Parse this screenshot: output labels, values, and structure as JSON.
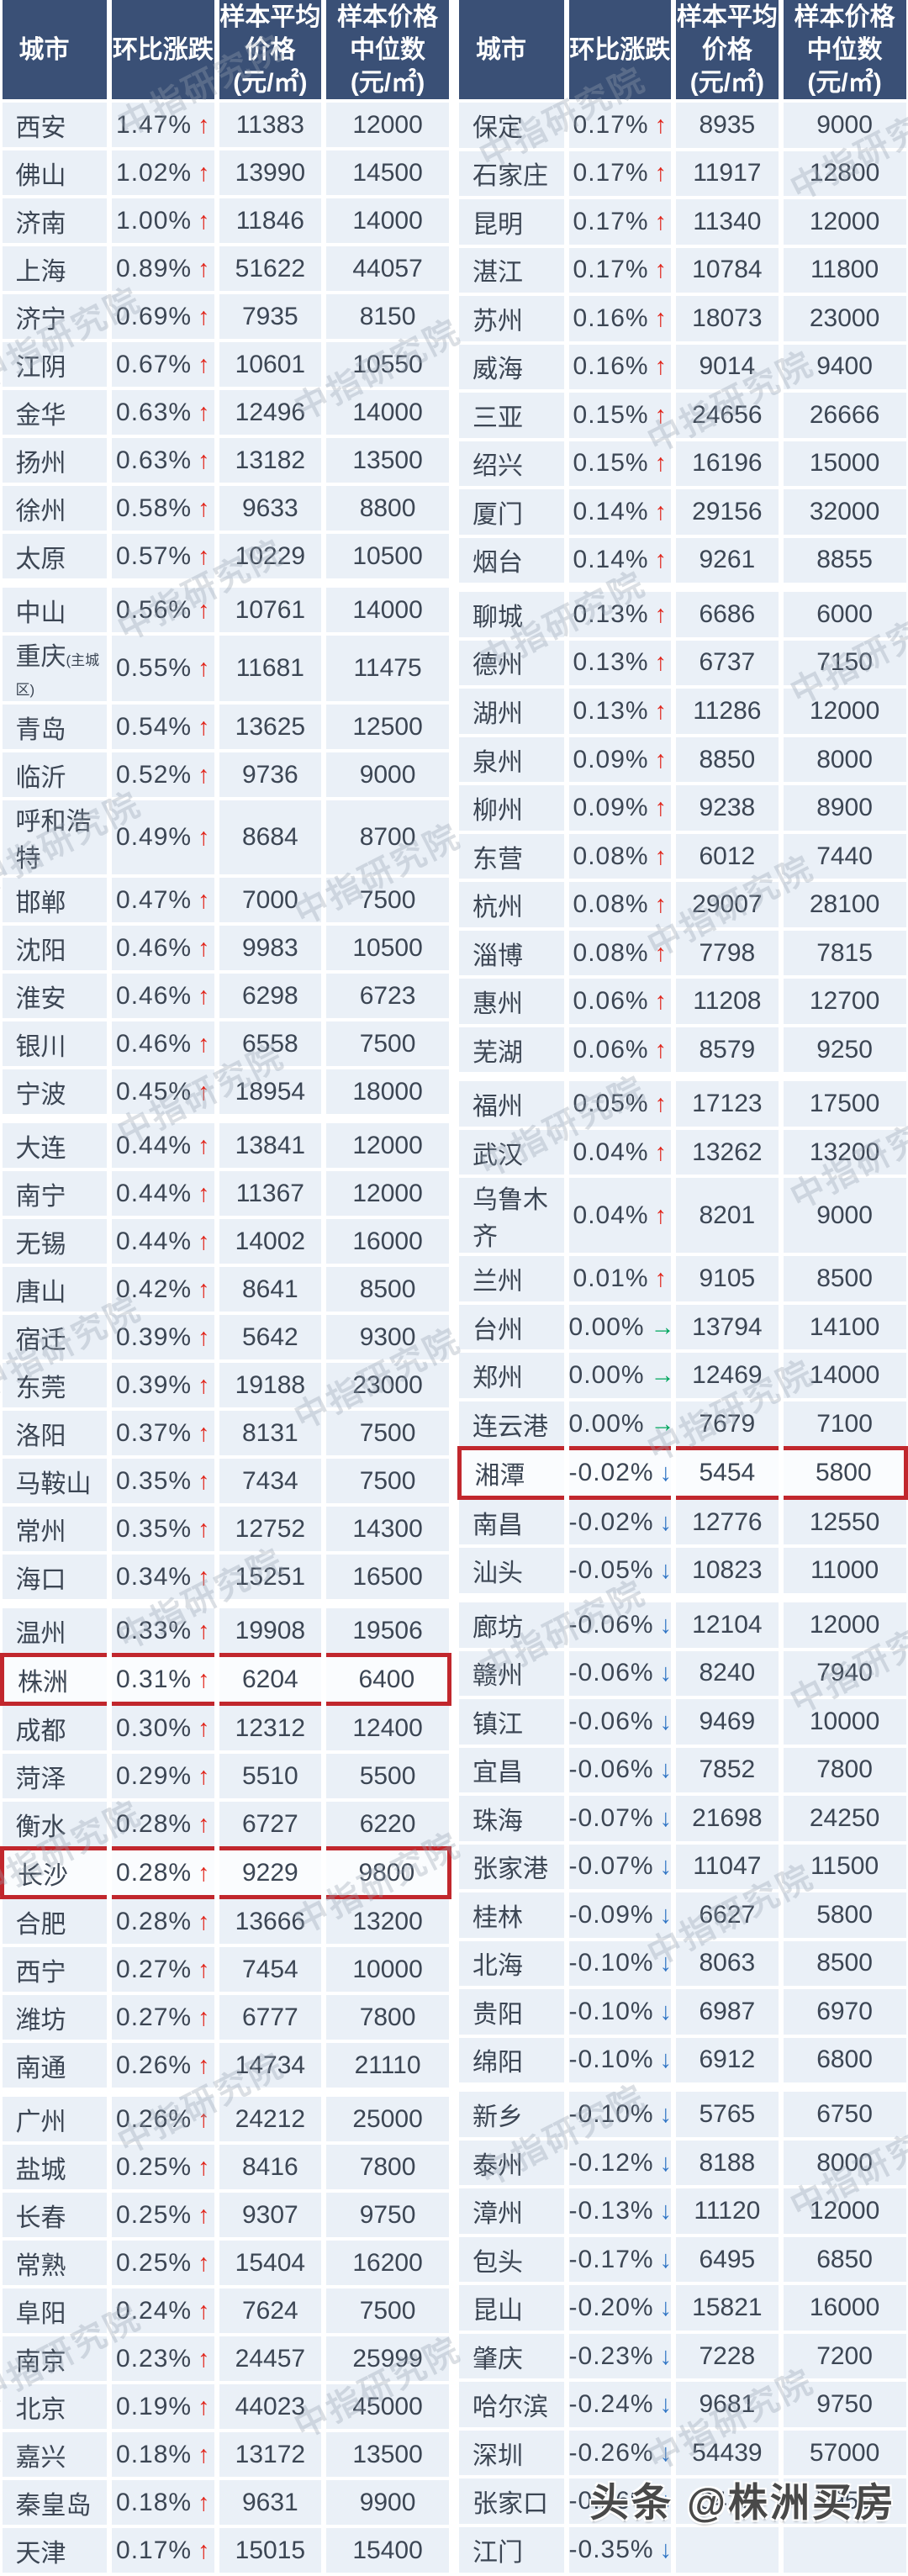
{
  "header": {
    "city": "城市",
    "change": "环比涨跌",
    "avg1": "样本平均",
    "avg2": "价格",
    "median1": "样本价格",
    "median2": "中位数",
    "unit": "(元/㎡)"
  },
  "arrows": {
    "up": "↑",
    "down": "↓",
    "flat": "→"
  },
  "colors": {
    "header_bg": "#3a5076",
    "row_bg": "#eaf0f7",
    "highlight_row_bg": "#fafcfe",
    "up_arrow": "#e1251b",
    "down_arrow": "#2f74c4",
    "flat_arrow": "#00a65e",
    "highlight_border": "#c1272d"
  },
  "watermark": {
    "text": "中指研究院"
  },
  "footer_watermark": {
    "text": "头条 @株洲买房"
  },
  "left_rows": [
    {
      "city": "西安",
      "change": "1.47%",
      "dir": "up",
      "avg": "11383",
      "median": "12000"
    },
    {
      "city": "佛山",
      "change": "1.02%",
      "dir": "up",
      "avg": "13990",
      "median": "14500"
    },
    {
      "city": "济南",
      "change": "1.00%",
      "dir": "up",
      "avg": "11846",
      "median": "14000"
    },
    {
      "city": "上海",
      "change": "0.89%",
      "dir": "up",
      "avg": "51622",
      "median": "44057"
    },
    {
      "city": "济宁",
      "change": "0.69%",
      "dir": "up",
      "avg": "7935",
      "median": "8150"
    },
    {
      "city": "江阴",
      "change": "0.67%",
      "dir": "up",
      "avg": "10601",
      "median": "10550"
    },
    {
      "city": "金华",
      "change": "0.63%",
      "dir": "up",
      "avg": "12496",
      "median": "14000"
    },
    {
      "city": "扬州",
      "change": "0.63%",
      "dir": "up",
      "avg": "13182",
      "median": "13500"
    },
    {
      "city": "徐州",
      "change": "0.58%",
      "dir": "up",
      "avg": "9633",
      "median": "8800"
    },
    {
      "city": "太原",
      "change": "0.57%",
      "dir": "up",
      "avg": "10229",
      "median": "10500"
    },
    {
      "city": "中山",
      "change": "0.56%",
      "dir": "up",
      "avg": "10761",
      "median": "14000"
    },
    {
      "city": "重庆",
      "note": "(主城区)",
      "change": "0.55%",
      "dir": "up",
      "avg": "11681",
      "median": "11475"
    },
    {
      "city": "青岛",
      "change": "0.54%",
      "dir": "up",
      "avg": "13625",
      "median": "12500"
    },
    {
      "city": "临沂",
      "change": "0.52%",
      "dir": "up",
      "avg": "9736",
      "median": "9000"
    },
    {
      "city": "呼和浩特",
      "change": "0.49%",
      "dir": "up",
      "avg": "8684",
      "median": "8700"
    },
    {
      "city": "邯郸",
      "change": "0.47%",
      "dir": "up",
      "avg": "7000",
      "median": "7500"
    },
    {
      "city": "沈阳",
      "change": "0.46%",
      "dir": "up",
      "avg": "9983",
      "median": "10500"
    },
    {
      "city": "淮安",
      "change": "0.46%",
      "dir": "up",
      "avg": "6298",
      "median": "6723"
    },
    {
      "city": "银川",
      "change": "0.46%",
      "dir": "up",
      "avg": "6558",
      "median": "7500"
    },
    {
      "city": "宁波",
      "change": "0.45%",
      "dir": "up",
      "avg": "18954",
      "median": "18000"
    },
    {
      "city": "大连",
      "change": "0.44%",
      "dir": "up",
      "avg": "13841",
      "median": "12000"
    },
    {
      "city": "南宁",
      "change": "0.44%",
      "dir": "up",
      "avg": "11367",
      "median": "12000"
    },
    {
      "city": "无锡",
      "change": "0.44%",
      "dir": "up",
      "avg": "14002",
      "median": "16000"
    },
    {
      "city": "唐山",
      "change": "0.42%",
      "dir": "up",
      "avg": "8641",
      "median": "8500"
    },
    {
      "city": "宿迁",
      "change": "0.39%",
      "dir": "up",
      "avg": "5642",
      "median": "9300"
    },
    {
      "city": "东莞",
      "change": "0.39%",
      "dir": "up",
      "avg": "19188",
      "median": "23000"
    },
    {
      "city": "洛阳",
      "change": "0.37%",
      "dir": "up",
      "avg": "8131",
      "median": "7500"
    },
    {
      "city": "马鞍山",
      "change": "0.35%",
      "dir": "up",
      "avg": "7434",
      "median": "7500"
    },
    {
      "city": "常州",
      "change": "0.35%",
      "dir": "up",
      "avg": "12752",
      "median": "14300"
    },
    {
      "city": "海口",
      "change": "0.34%",
      "dir": "up",
      "avg": "15251",
      "median": "16500"
    },
    {
      "city": "温州",
      "change": "0.33%",
      "dir": "up",
      "avg": "19908",
      "median": "19506"
    },
    {
      "city": "株洲",
      "change": "0.31%",
      "dir": "up",
      "avg": "6204",
      "median": "6400",
      "highlight": true
    },
    {
      "city": "成都",
      "change": "0.30%",
      "dir": "up",
      "avg": "12312",
      "median": "12400"
    },
    {
      "city": "菏泽",
      "change": "0.29%",
      "dir": "up",
      "avg": "5510",
      "median": "5500"
    },
    {
      "city": "衡水",
      "change": "0.28%",
      "dir": "up",
      "avg": "6727",
      "median": "6220"
    },
    {
      "city": "长沙",
      "change": "0.28%",
      "dir": "up",
      "avg": "9229",
      "median": "9800",
      "highlight": true
    },
    {
      "city": "合肥",
      "change": "0.28%",
      "dir": "up",
      "avg": "13666",
      "median": "13200"
    },
    {
      "city": "西宁",
      "change": "0.27%",
      "dir": "up",
      "avg": "7454",
      "median": "10000"
    },
    {
      "city": "潍坊",
      "change": "0.27%",
      "dir": "up",
      "avg": "6777",
      "median": "7800"
    },
    {
      "city": "南通",
      "change": "0.26%",
      "dir": "up",
      "avg": "14734",
      "median": "21110"
    },
    {
      "city": "广州",
      "change": "0.26%",
      "dir": "up",
      "avg": "24212",
      "median": "25000"
    },
    {
      "city": "盐城",
      "change": "0.25%",
      "dir": "up",
      "avg": "8416",
      "median": "7800"
    },
    {
      "city": "长春",
      "change": "0.25%",
      "dir": "up",
      "avg": "9307",
      "median": "9750"
    },
    {
      "city": "常熟",
      "change": "0.25%",
      "dir": "up",
      "avg": "15404",
      "median": "16200"
    },
    {
      "city": "阜阳",
      "change": "0.24%",
      "dir": "up",
      "avg": "7624",
      "median": "7500"
    },
    {
      "city": "南京",
      "change": "0.23%",
      "dir": "up",
      "avg": "24457",
      "median": "25999"
    },
    {
      "city": "北京",
      "change": "0.19%",
      "dir": "up",
      "avg": "44023",
      "median": "45000"
    },
    {
      "city": "嘉兴",
      "change": "0.18%",
      "dir": "up",
      "avg": "13172",
      "median": "13500"
    },
    {
      "city": "秦皇岛",
      "change": "0.18%",
      "dir": "up",
      "avg": "9631",
      "median": "9900"
    },
    {
      "city": "天津",
      "change": "0.17%",
      "dir": "up",
      "avg": "15015",
      "median": "15400"
    }
  ],
  "right_rows": [
    {
      "city": "保定",
      "change": "0.17%",
      "dir": "up",
      "avg": "8935",
      "median": "9000"
    },
    {
      "city": "石家庄",
      "change": "0.17%",
      "dir": "up",
      "avg": "11917",
      "median": "12800"
    },
    {
      "city": "昆明",
      "change": "0.17%",
      "dir": "up",
      "avg": "11340",
      "median": "12000"
    },
    {
      "city": "湛江",
      "change": "0.17%",
      "dir": "up",
      "avg": "10784",
      "median": "11800"
    },
    {
      "city": "苏州",
      "change": "0.16%",
      "dir": "up",
      "avg": "18073",
      "median": "23000"
    },
    {
      "city": "威海",
      "change": "0.16%",
      "dir": "up",
      "avg": "9014",
      "median": "9400"
    },
    {
      "city": "三亚",
      "change": "0.15%",
      "dir": "up",
      "avg": "24656",
      "median": "26666"
    },
    {
      "city": "绍兴",
      "change": "0.15%",
      "dir": "up",
      "avg": "16196",
      "median": "15000"
    },
    {
      "city": "厦门",
      "change": "0.14%",
      "dir": "up",
      "avg": "29156",
      "median": "32000"
    },
    {
      "city": "烟台",
      "change": "0.14%",
      "dir": "up",
      "avg": "9261",
      "median": "8855"
    },
    {
      "city": "聊城",
      "change": "0.13%",
      "dir": "up",
      "avg": "6686",
      "median": "6000"
    },
    {
      "city": "德州",
      "change": "0.13%",
      "dir": "up",
      "avg": "6737",
      "median": "7150"
    },
    {
      "city": "湖州",
      "change": "0.13%",
      "dir": "up",
      "avg": "11286",
      "median": "12000"
    },
    {
      "city": "泉州",
      "change": "0.09%",
      "dir": "up",
      "avg": "8850",
      "median": "8000"
    },
    {
      "city": "柳州",
      "change": "0.09%",
      "dir": "up",
      "avg": "9238",
      "median": "8900"
    },
    {
      "city": "东营",
      "change": "0.08%",
      "dir": "up",
      "avg": "6012",
      "median": "7440"
    },
    {
      "city": "杭州",
      "change": "0.08%",
      "dir": "up",
      "avg": "29007",
      "median": "28100"
    },
    {
      "city": "淄博",
      "change": "0.08%",
      "dir": "up",
      "avg": "7798",
      "median": "7815"
    },
    {
      "city": "惠州",
      "change": "0.06%",
      "dir": "up",
      "avg": "11208",
      "median": "12700"
    },
    {
      "city": "芜湖",
      "change": "0.06%",
      "dir": "up",
      "avg": "8579",
      "median": "9250"
    },
    {
      "city": "福州",
      "change": "0.05%",
      "dir": "up",
      "avg": "17123",
      "median": "17500"
    },
    {
      "city": "武汉",
      "change": "0.04%",
      "dir": "up",
      "avg": "13262",
      "median": "13200"
    },
    {
      "city": "乌鲁木齐",
      "change": "0.04%",
      "dir": "up",
      "avg": "8201",
      "median": "9000"
    },
    {
      "city": "兰州",
      "change": "0.01%",
      "dir": "up",
      "avg": "9105",
      "median": "8500"
    },
    {
      "city": "台州",
      "change": "0.00%",
      "dir": "flat",
      "avg": "13794",
      "median": "14100"
    },
    {
      "city": "郑州",
      "change": "0.00%",
      "dir": "flat",
      "avg": "12469",
      "median": "14000"
    },
    {
      "city": "连云港",
      "change": "0.00%",
      "dir": "flat",
      "avg": "7679",
      "median": "7100"
    },
    {
      "city": "湘潭",
      "change": "-0.02%",
      "dir": "down",
      "avg": "5454",
      "median": "5800",
      "highlight": true
    },
    {
      "city": "南昌",
      "change": "-0.02%",
      "dir": "down",
      "avg": "12776",
      "median": "12550"
    },
    {
      "city": "汕头",
      "change": "-0.05%",
      "dir": "down",
      "avg": "10823",
      "median": "11000"
    },
    {
      "city": "廊坊",
      "change": "-0.06%",
      "dir": "down",
      "avg": "12104",
      "median": "12000"
    },
    {
      "city": "赣州",
      "change": "-0.06%",
      "dir": "down",
      "avg": "8240",
      "median": "7940"
    },
    {
      "city": "镇江",
      "change": "-0.06%",
      "dir": "down",
      "avg": "9469",
      "median": "10000"
    },
    {
      "city": "宜昌",
      "change": "-0.06%",
      "dir": "down",
      "avg": "7852",
      "median": "7800"
    },
    {
      "city": "珠海",
      "change": "-0.07%",
      "dir": "down",
      "avg": "21698",
      "median": "24250"
    },
    {
      "city": "张家港",
      "change": "-0.07%",
      "dir": "down",
      "avg": "11047",
      "median": "11500"
    },
    {
      "city": "桂林",
      "change": "-0.09%",
      "dir": "down",
      "avg": "6627",
      "median": "5800"
    },
    {
      "city": "北海",
      "change": "-0.10%",
      "dir": "down",
      "avg": "8063",
      "median": "8500"
    },
    {
      "city": "贵阳",
      "change": "-0.10%",
      "dir": "down",
      "avg": "6987",
      "median": "6970"
    },
    {
      "city": "绵阳",
      "change": "-0.10%",
      "dir": "down",
      "avg": "6912",
      "median": "6800"
    },
    {
      "city": "新乡",
      "change": "-0.10%",
      "dir": "down",
      "avg": "5765",
      "median": "6750"
    },
    {
      "city": "泰州",
      "change": "-0.12%",
      "dir": "down",
      "avg": "8188",
      "median": "8000"
    },
    {
      "city": "漳州",
      "change": "-0.13%",
      "dir": "down",
      "avg": "11120",
      "median": "12000"
    },
    {
      "city": "包头",
      "change": "-0.17%",
      "dir": "down",
      "avg": "6495",
      "median": "6850"
    },
    {
      "city": "昆山",
      "change": "-0.20%",
      "dir": "down",
      "avg": "15821",
      "median": "16000"
    },
    {
      "city": "肇庆",
      "change": "-0.23%",
      "dir": "down",
      "avg": "7228",
      "median": "7200"
    },
    {
      "city": "哈尔滨",
      "change": "-0.24%",
      "dir": "down",
      "avg": "9681",
      "median": "9750"
    },
    {
      "city": "深圳",
      "change": "-0.26%",
      "dir": "down",
      "avg": "54439",
      "median": "57000"
    },
    {
      "city": "张家口",
      "change": "-0.26%",
      "dir": "down",
      "avg": "8433",
      "median": "7950"
    },
    {
      "city": "江门",
      "change": "-0.35%",
      "dir": "down",
      "avg": "",
      "median": ""
    }
  ]
}
